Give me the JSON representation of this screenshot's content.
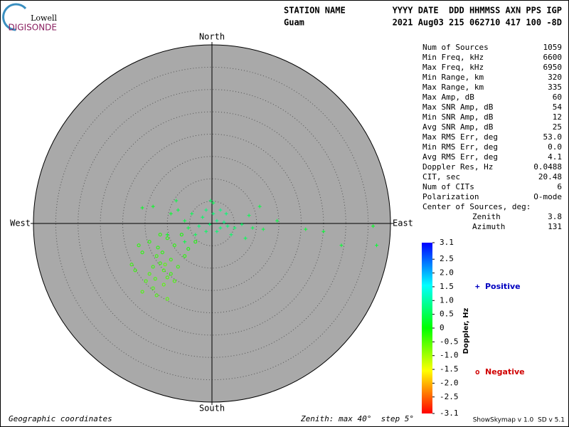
{
  "header": {
    "station_label": "STATION NAME",
    "columns_label": "YYYY DATE  DDD HHMMSS AXN PPS IGP",
    "station": "Guam",
    "values": "2021 Aug03 215 062710 417 100 -8D"
  },
  "logo": {
    "small": "Lowell",
    "big": "DIGISONDE"
  },
  "stats": [
    [
      "Num of Sources",
      "1059"
    ],
    [
      "Min Freq, kHz",
      "6600"
    ],
    [
      "Max Freq, kHz",
      "6950"
    ],
    [
      "Min Range, km",
      "320"
    ],
    [
      "Max Range, km",
      "335"
    ],
    [
      "Max Amp, dB",
      "60"
    ],
    [
      "Max SNR Amp, dB",
      "54"
    ],
    [
      "Min SNR Amp, dB",
      "12"
    ],
    [
      "Avg SNR Amp, dB",
      "25"
    ],
    [
      "Max RMS Err, deg",
      "53.0"
    ],
    [
      "Min RMS Err, deg",
      "0.0"
    ],
    [
      "Avg RMS Err, deg",
      "4.1"
    ],
    [
      "Doppler Res, Hz",
      "0.0488"
    ],
    [
      "CIT, sec",
      "20.48"
    ],
    [
      "Num of CITs",
      "6"
    ],
    [
      "Polarization",
      "O-mode"
    ]
  ],
  "center": {
    "label": "Center of Sources, deg:",
    "rows": [
      [
        "Zenith",
        "3.8"
      ],
      [
        "Azimuth",
        "131"
      ]
    ]
  },
  "footer": {
    "left": "Geographic coordinates",
    "middle": "Zenith: max 40°  step 5°",
    "right": "ShowSkymap v 1.0  SD v 5.1"
  },
  "chart_data": {
    "type": "skymap",
    "directions": {
      "north": "North",
      "south": "South",
      "east": "East",
      "west": "West"
    },
    "rlim": [
      0,
      40
    ],
    "rticks": [
      5,
      10,
      15,
      20,
      25,
      30,
      35,
      40
    ],
    "series": [
      {
        "name": "Positive",
        "marker": "+",
        "color": "#0000c0",
        "x": [
          0.3,
          1.1,
          -0.5,
          1.9,
          -1.3,
          2.7,
          -2.1,
          3.5,
          0.3,
          -4.5,
          -6.1,
          -7.6,
          -9.2,
          5.1,
          6.7,
          9.1,
          10.7,
          14.6,
          21.0,
          25.0,
          29.0,
          36.1,
          36.9,
          -15.6,
          -13.2,
          -8.0,
          -0.3,
          -3.7,
          -6.1,
          4.3,
          7.5,
          -2.9,
          1.1,
          3.2,
          -1.3,
          1.9,
          -5.3,
          8.3,
          11.5,
          -10.0
        ],
        "y": [
          2.2,
          0.6,
          -0.2,
          -1.0,
          -1.8,
          0.3,
          1.4,
          -0.6,
          4.6,
          2.2,
          0.6,
          3.0,
          2.2,
          -1.0,
          -0.2,
          -1.0,
          3.8,
          0.6,
          -1.3,
          -1.8,
          -4.9,
          -0.6,
          -4.9,
          3.5,
          3.8,
          5.1,
          5.1,
          -2.5,
          -4.1,
          -2.5,
          -3.3,
          -0.6,
          -1.8,
          2.2,
          3.0,
          3.0,
          -1.0,
          1.8,
          -1.3,
          -2.5
        ],
        "doppler": [
          0.7,
          0.8,
          0.7,
          0.7,
          0.6,
          0.8,
          0.6,
          0.7,
          0.5,
          0.5,
          0.4,
          0.4,
          0.3,
          0.6,
          0.6,
          0.5,
          0.4,
          0.4,
          0.3,
          0.3,
          0.3,
          0.2,
          0.3,
          0.2,
          0.2,
          0.4,
          0.6,
          0.5,
          0.4,
          0.6,
          0.5,
          0.7,
          0.7,
          0.7,
          0.7,
          0.8,
          0.4,
          0.5,
          0.4,
          0.2
        ]
      },
      {
        "name": "Negative",
        "marker": "o",
        "color": "#d00000",
        "x": [
          -11.6,
          -10.8,
          -12.4,
          -10.0,
          -13.2,
          -11.1,
          -9.2,
          -14.0,
          -15.6,
          -16.4,
          -14.8,
          -13.2,
          -10.8,
          -9.2,
          -7.6,
          -6.1,
          -8.4,
          -10.0,
          -5.3,
          -3.7,
          -17.2,
          -18.0,
          -15.6,
          -12.4,
          -10.0,
          -14.0,
          -6.8,
          -11.6,
          -8.4,
          -12.7,
          -10.5,
          -12.1
        ],
        "y": [
          -8.9,
          -10.5,
          -7.3,
          -12.1,
          -9.7,
          -6.5,
          -8.1,
          -11.3,
          -6.5,
          -4.9,
          -12.9,
          -14.5,
          -13.7,
          -11.3,
          -9.7,
          -7.3,
          -4.9,
          -3.3,
          -5.7,
          -4.1,
          -10.5,
          -9.2,
          -15.3,
          -16.1,
          -16.9,
          -4.1,
          -2.5,
          -2.5,
          -12.9,
          -12.4,
          -9.2,
          -5.4
        ],
        "doppler": [
          -0.3,
          -0.4,
          -0.3,
          -0.4,
          -0.3,
          -0.2,
          -0.3,
          -0.4,
          -0.2,
          -0.2,
          -0.4,
          -0.4,
          -0.5,
          -0.3,
          -0.3,
          -0.2,
          -0.2,
          -0.2,
          -0.1,
          -0.1,
          -0.3,
          -0.3,
          -0.4,
          -0.4,
          -0.5,
          -0.2,
          -0.1,
          -0.2,
          -0.4,
          -0.4,
          -0.5,
          -0.2
        ]
      }
    ],
    "colorbar": {
      "label": "Doppler, Hz",
      "lim": [
        -3.1,
        3.1
      ],
      "ticks": [
        3.1,
        2.5,
        {
          "value": 2,
          "label": "2.0"
        },
        1.5,
        {
          "value": 1,
          "label": "1.0"
        },
        0.5,
        0,
        -0.5,
        {
          "value": -1,
          "label": "-1.0"
        },
        -1.5,
        {
          "value": -2,
          "label": "-2.0"
        },
        -2.5,
        -3.1
      ]
    }
  }
}
